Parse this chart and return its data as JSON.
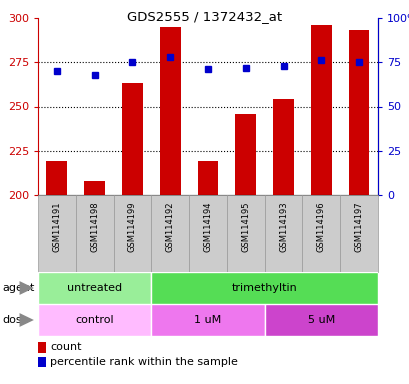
{
  "title": "GDS2555 / 1372432_at",
  "samples": [
    "GSM114191",
    "GSM114198",
    "GSM114199",
    "GSM114192",
    "GSM114194",
    "GSM114195",
    "GSM114193",
    "GSM114196",
    "GSM114197"
  ],
  "bar_values": [
    219,
    208,
    263,
    295,
    219,
    246,
    254,
    296,
    293
  ],
  "dot_values": [
    70,
    68,
    75,
    78,
    71,
    72,
    73,
    76,
    75
  ],
  "ylim_left": [
    200,
    300
  ],
  "ylim_right": [
    0,
    100
  ],
  "yticks_left": [
    200,
    225,
    250,
    275,
    300
  ],
  "yticks_right": [
    0,
    25,
    50,
    75,
    100
  ],
  "bar_color": "#cc0000",
  "dot_color": "#0000cc",
  "agent_groups": [
    {
      "label": "untreated",
      "start": 0,
      "end": 3,
      "color": "#99ee99"
    },
    {
      "label": "trimethyltin",
      "start": 3,
      "end": 9,
      "color": "#55dd55"
    }
  ],
  "dose_groups": [
    {
      "label": "control",
      "start": 0,
      "end": 3,
      "color": "#ffbbff"
    },
    {
      "label": "1 uM",
      "start": 3,
      "end": 6,
      "color": "#ee77ee"
    },
    {
      "label": "5 uM",
      "start": 6,
      "end": 9,
      "color": "#cc44cc"
    }
  ],
  "legend_count_color": "#cc0000",
  "legend_dot_color": "#0000cc",
  "bg_color": "#ffffff",
  "tick_color_left": "#cc0000",
  "tick_color_right": "#0000cc",
  "grid_yticks": [
    225,
    250,
    275
  ],
  "sample_box_color": "#cccccc",
  "sample_box_edge": "#999999"
}
